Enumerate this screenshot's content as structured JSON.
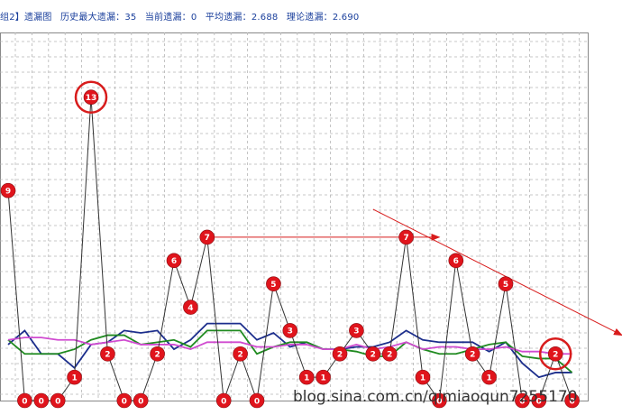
{
  "header": {
    "group_label": "组2】遗漏图",
    "max_miss": "历史最大遗漏：35",
    "current_miss": "当前遗漏：0",
    "avg_miss": "平均遗漏：2.688",
    "theory_miss": "理论遗漏：2.690"
  },
  "watermark": "blog.sina.com.cn/qimiaoqun7255170",
  "colors": {
    "marker": "#e0141c",
    "zigzag": "#333333",
    "navy": "#1c2e8c",
    "green": "#1f8a1f",
    "magenta": "#d04bd0",
    "arrow": "#d81c1c",
    "highlight_circle": "#d81c1c"
  },
  "chart_data": {
    "type": "line",
    "title": "",
    "xlabel": "",
    "ylabel": "",
    "ylim": [
      0,
      15
    ],
    "grid": true,
    "x": [
      0,
      1,
      2,
      3,
      4,
      5,
      6,
      7,
      8,
      9,
      10,
      11,
      12,
      13,
      14,
      15,
      16,
      17,
      18,
      19,
      20,
      21,
      22,
      23,
      24,
      25,
      26,
      27,
      28,
      29,
      30,
      31,
      32,
      33,
      34
    ],
    "miss_values": [
      9,
      0,
      0,
      0,
      1,
      13,
      2,
      0,
      0,
      2,
      6,
      4,
      7,
      0,
      2,
      0,
      5,
      3,
      1,
      1,
      2,
      3,
      2,
      2,
      7,
      1,
      0,
      6,
      2,
      1,
      5,
      0,
      0,
      2,
      0
    ],
    "labels": [
      "9",
      "0",
      "0",
      "0",
      "1",
      "13",
      "2",
      "0",
      "0",
      "2",
      "6",
      "4",
      "7",
      "0",
      "2",
      "0",
      "5",
      "3",
      "1",
      "1",
      "2",
      "3",
      "2",
      "2",
      "7",
      "1",
      "0",
      "6",
      "2",
      "1",
      "5",
      "0",
      "0",
      "2",
      "0"
    ],
    "series": [
      {
        "values": [
          2.4,
          3.0,
          2.0,
          2.0,
          1.4,
          2.4,
          2.5,
          3.0,
          2.9,
          3.0,
          2.2,
          2.6,
          3.3,
          3.3,
          3.3,
          2.6,
          2.9,
          2.3,
          2.5,
          2.2,
          2.2,
          2.3,
          2.3,
          2.5,
          3.0,
          2.6,
          2.5,
          2.5,
          2.5,
          2.1,
          2.5,
          1.6,
          1.0,
          1.2,
          1.2
        ]
      },
      {
        "values": [
          2.6,
          2.0,
          2.0,
          2.0,
          2.2,
          2.6,
          2.8,
          2.8,
          2.4,
          2.5,
          2.6,
          2.3,
          3.0,
          3.0,
          3.0,
          2.0,
          2.3,
          2.5,
          2.5,
          2.2,
          2.2,
          2.1,
          1.9,
          1.9,
          2.5,
          2.2,
          2.0,
          2.0,
          2.2,
          2.4,
          2.5,
          1.9,
          1.8,
          1.8,
          1.2
        ]
      },
      {
        "values": [
          2.6,
          2.7,
          2.7,
          2.6,
          2.6,
          2.4,
          2.5,
          2.6,
          2.4,
          2.4,
          2.4,
          2.2,
          2.5,
          2.5,
          2.5,
          2.3,
          2.3,
          2.4,
          2.4,
          2.2,
          2.2,
          2.4,
          2.2,
          2.3,
          2.5,
          2.2,
          2.3,
          2.3,
          2.2,
          2.2,
          2.3,
          2.1,
          2.1,
          2.0,
          2.0
        ]
      }
    ],
    "highlighted_points": [
      5,
      33
    ]
  }
}
